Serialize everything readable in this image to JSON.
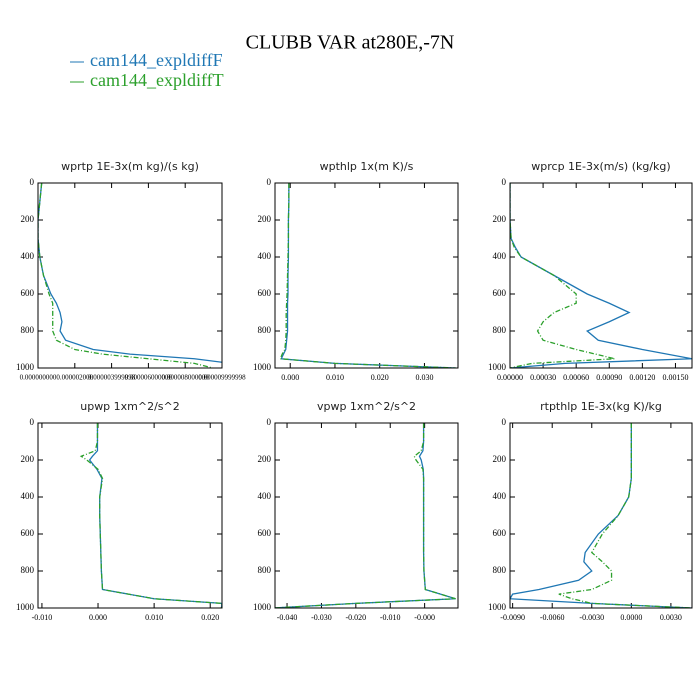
{
  "title": "CLUBB VAR at280E,-7N",
  "chart_data": [
    {
      "type": "line",
      "title": "wprtp  1E-3x(m kg)/(s kg)",
      "invert_y": true,
      "y": [
        0,
        100,
        200,
        300,
        400,
        500,
        600,
        650,
        700,
        750,
        800,
        850,
        900,
        925,
        950,
        975,
        1000
      ],
      "ylim": [
        0,
        1000
      ],
      "yticks": [
        0,
        200,
        400,
        600,
        800,
        1000
      ],
      "xlim": [
        0,
        1e-05
      ],
      "xticks": [
        {
          "value": 0,
          "label": "0.000000000"
        },
        {
          "value": 2e-06,
          "label": "0.000002000"
        },
        {
          "value": 4e-06,
          "label": "0.000003999998"
        },
        {
          "value": 6e-06,
          "label": "0.000006000000"
        },
        {
          "value": 8e-06,
          "label": "0.000008000000"
        },
        {
          "value": 1e-05,
          "label": "0.000009999998"
        }
      ],
      "series": [
        {
          "name": "cam144_expldiffF",
          "color": "#1f77b4",
          "linestyle": "solid",
          "values": [
            2e-07,
            1e-07,
            0,
            0,
            1e-07,
            3e-07,
            7e-07,
            1e-06,
            1.2e-06,
            1.3e-06,
            1.2e-06,
            1.5e-06,
            3e-06,
            5e-06,
            8.5e-06,
            1.05e-05,
            1.1e-05
          ]
        },
        {
          "name": "cam144_expldiffT",
          "color": "#2ca02c",
          "linestyle": "dashed",
          "values": [
            2e-07,
            1e-07,
            0,
            0,
            1e-07,
            3e-07,
            6e-07,
            8e-07,
            8e-07,
            8e-07,
            8e-07,
            1e-06,
            2e-06,
            3.5e-06,
            6e-06,
            8.5e-06,
            9.5e-06
          ]
        }
      ]
    },
    {
      "type": "line",
      "title": "wpthlp  1x(m K)/s",
      "invert_y": true,
      "y": [
        0,
        100,
        200,
        300,
        400,
        500,
        600,
        650,
        700,
        750,
        800,
        850,
        900,
        925,
        950,
        975,
        1000
      ],
      "ylim": [
        0,
        1000
      ],
      "yticks": [
        0,
        200,
        400,
        600,
        800,
        1000
      ],
      "xlim": [
        -0.0034,
        0.0375
      ],
      "xticks": [
        {
          "value": 0,
          "label": "0.000"
        },
        {
          "value": 0.01,
          "label": "0.010"
        },
        {
          "value": 0.02,
          "label": "0.020"
        },
        {
          "value": 0.03,
          "label": "0.030"
        }
      ],
      "series": [
        {
          "name": "cam144_expldiffF",
          "color": "#1f77b4",
          "linestyle": "solid",
          "values": [
            -0.0003,
            -0.0003,
            -0.0004,
            -0.0004,
            -0.0004,
            -0.0005,
            -0.0005,
            -0.0006,
            -0.0006,
            -0.0006,
            -0.0006,
            -0.0008,
            -0.001,
            -0.0015,
            -0.002,
            0.01,
            0.037
          ]
        },
        {
          "name": "cam144_expldiffT",
          "color": "#2ca02c",
          "linestyle": "dashed",
          "values": [
            -0.0003,
            -0.0003,
            -0.0004,
            -0.0004,
            -0.0005,
            -0.0006,
            -0.0007,
            -0.0008,
            -0.0009,
            -0.0009,
            -0.0009,
            -0.001,
            -0.0012,
            -0.0018,
            -0.0022,
            0.01,
            0.037
          ]
        }
      ]
    },
    {
      "type": "line",
      "title": "wprcp  1E-3x(m/s) (kg/kg)",
      "invert_y": true,
      "y": [
        0,
        100,
        200,
        300,
        350,
        400,
        500,
        600,
        650,
        700,
        750,
        800,
        850,
        900,
        950,
        975,
        1000
      ],
      "ylim": [
        0,
        1000
      ],
      "yticks": [
        0,
        200,
        400,
        600,
        800,
        1000
      ],
      "xlim": [
        0,
        0.00165
      ],
      "xticks": [
        {
          "value": 0,
          "label": "0.00000"
        },
        {
          "value": 0.0003,
          "label": "0.00030"
        },
        {
          "value": 0.0006,
          "label": "0.00060"
        },
        {
          "value": 0.0009,
          "label": "0.00090"
        },
        {
          "value": 0.0012,
          "label": "0.00120"
        },
        {
          "value": 0.0015,
          "label": "0.00150"
        }
      ],
      "series": [
        {
          "name": "cam144_expldiffF",
          "color": "#1f77b4",
          "linestyle": "solid",
          "values": [
            0,
            0,
            0,
            1e-05,
            5e-05,
            0.0001,
            0.0004,
            0.0007,
            0.0009,
            0.00108,
            0.0009,
            0.0007,
            0.0008,
            0.0012,
            0.00165,
            0.0005,
            0
          ]
        },
        {
          "name": "cam144_expldiffT",
          "color": "#2ca02c",
          "linestyle": "dashed",
          "values": [
            0,
            0,
            0,
            1e-05,
            4e-05,
            0.0001,
            0.0004,
            0.0006,
            0.0006,
            0.0004,
            0.0003,
            0.00025,
            0.0003,
            0.0006,
            0.00095,
            0.0002,
            0
          ]
        }
      ]
    },
    {
      "type": "line",
      "title": "upwp  1xm^2/s^2",
      "invert_y": true,
      "y": [
        0,
        100,
        150,
        180,
        200,
        250,
        300,
        400,
        500,
        600,
        700,
        800,
        900,
        950,
        975,
        1000
      ],
      "ylim": [
        0,
        1000
      ],
      "yticks": [
        0,
        200,
        400,
        600,
        800,
        1000
      ],
      "xlim": [
        -0.0107,
        0.0221
      ],
      "xticks": [
        {
          "value": -0.01,
          "label": "-0.010"
        },
        {
          "value": 0,
          "label": "0.000"
        },
        {
          "value": 0.01,
          "label": "0.010"
        },
        {
          "value": 0.02,
          "label": "0.020"
        }
      ],
      "series": [
        {
          "name": "cam144_expldiffF",
          "color": "#1f77b4",
          "linestyle": "solid",
          "values": [
            -0.0001,
            -0.0001,
            -0.0001,
            -0.001,
            -0.0015,
            -0.0002,
            0.0007,
            0.0003,
            0.0003,
            0.0004,
            0.0005,
            0.0006,
            0.0008,
            0.01,
            0.0221,
            0.022
          ]
        },
        {
          "name": "cam144_expldiffT",
          "color": "#2ca02c",
          "linestyle": "dashed",
          "values": [
            -0.0001,
            -0.0001,
            -0.0005,
            -0.003,
            -0.002,
            0,
            0.0008,
            0.0003,
            0.0003,
            0.0004,
            0.0005,
            0.0006,
            0.0008,
            0.01,
            0.0221,
            0.022
          ]
        }
      ]
    },
    {
      "type": "line",
      "title": "vpwp  1xm^2/s^2",
      "invert_y": true,
      "y": [
        0,
        100,
        150,
        180,
        200,
        250,
        300,
        400,
        500,
        600,
        700,
        800,
        900,
        950,
        975,
        1000
      ],
      "ylim": [
        0,
        1000
      ],
      "yticks": [
        0,
        200,
        400,
        600,
        800,
        1000
      ],
      "xlim": [
        -0.0435,
        0.0097
      ],
      "xticks": [
        {
          "value": -0.04,
          "label": "-0.040"
        },
        {
          "value": -0.03,
          "label": "-0.030"
        },
        {
          "value": -0.02,
          "label": "-0.020"
        },
        {
          "value": -0.01,
          "label": "-0.010"
        },
        {
          "value": 0,
          "label": "-0.000"
        }
      ],
      "series": [
        {
          "name": "cam144_expldiffF",
          "color": "#1f77b4",
          "linestyle": "solid",
          "values": [
            -0.0003,
            -0.0003,
            -0.0005,
            -0.0015,
            -0.001,
            -0.0004,
            -0.0003,
            -0.0003,
            -0.0003,
            -0.0003,
            -0.0003,
            -0.0002,
            0.0002,
            0.009,
            -0.02,
            -0.044
          ]
        },
        {
          "name": "cam144_expldiffT",
          "color": "#2ca02c",
          "linestyle": "dashed",
          "values": [
            -0.0003,
            -0.0003,
            -0.001,
            -0.003,
            -0.0025,
            -0.0005,
            -0.0003,
            -0.0003,
            -0.0003,
            -0.0003,
            -0.0003,
            -0.0002,
            0.0002,
            0.009,
            -0.02,
            -0.044
          ]
        }
      ]
    },
    {
      "type": "line",
      "title": "rtpthlp  1E-3x(kg K)/kg",
      "invert_y": true,
      "y": [
        0,
        100,
        200,
        300,
        400,
        500,
        600,
        700,
        750,
        800,
        850,
        900,
        925,
        950,
        975,
        1000
      ],
      "ylim": [
        0,
        1000
      ],
      "yticks": [
        0,
        200,
        400,
        600,
        800,
        1000
      ],
      "xlim": [
        -0.0092,
        0.0046
      ],
      "xticks": [
        {
          "value": -0.009,
          "label": "-0.0090"
        },
        {
          "value": -0.006,
          "label": "-0.0060"
        },
        {
          "value": -0.003,
          "label": "-0.0030"
        },
        {
          "value": 0,
          "label": "0.0000"
        },
        {
          "value": 0.003,
          "label": "0.0030"
        }
      ],
      "series": [
        {
          "name": "cam144_expldiffF",
          "color": "#1f77b4",
          "linestyle": "solid",
          "values": [
            0,
            0,
            0,
            0,
            -0.0002,
            -0.001,
            -0.0025,
            -0.0035,
            -0.0036,
            -0.003,
            -0.004,
            -0.007,
            -0.009,
            -0.0092,
            -0.003,
            0.0046
          ]
        },
        {
          "name": "cam144_expldiffT",
          "color": "#2ca02c",
          "linestyle": "dashed",
          "values": [
            0,
            0,
            0,
            0,
            -0.0002,
            -0.001,
            -0.0022,
            -0.003,
            -0.0022,
            -0.0015,
            -0.0015,
            -0.003,
            -0.0055,
            -0.0045,
            -0.003,
            0.0046
          ]
        }
      ]
    }
  ]
}
